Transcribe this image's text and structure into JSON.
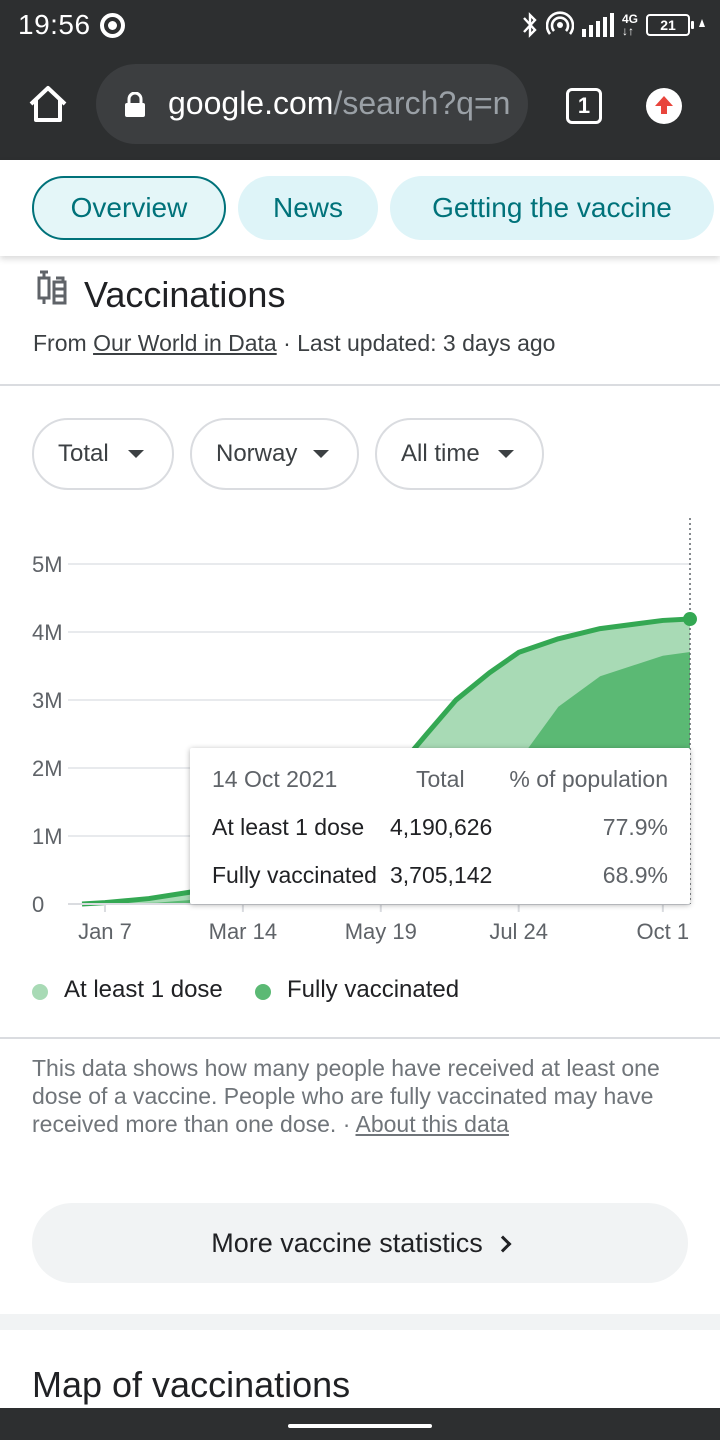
{
  "status_bar": {
    "time": "19:56",
    "battery": "21"
  },
  "toolbar": {
    "url_host": "google.com",
    "url_rest": "/search?q=n",
    "tab_count": "1"
  },
  "chips": [
    {
      "label": "Overview",
      "active": true
    },
    {
      "label": "News",
      "active": false
    },
    {
      "label": "Getting the vaccine",
      "active": false
    }
  ],
  "section": {
    "title": "Vaccinations",
    "source_prefix": "From ",
    "source_link": "Our World in Data",
    "source_suffix": " · Last updated: 3 days ago"
  },
  "filters": [
    {
      "label": "Total"
    },
    {
      "label": "Norway"
    },
    {
      "label": "All time"
    }
  ],
  "chart_data": {
    "type": "area",
    "y_ticks": [
      "5M",
      "4M",
      "3M",
      "2M",
      "1M",
      "0"
    ],
    "x_ticks": [
      "Jan 7",
      "Mar 14",
      "May 19",
      "Jul 24",
      "Oct 1"
    ],
    "ylim": [
      0,
      5000000
    ],
    "series": [
      {
        "name": "At least 1 dose",
        "color": "#a8dab5",
        "points": [
          [
            "2020-12-27",
            0
          ],
          [
            "2021-01-07",
            20000
          ],
          [
            "2021-01-28",
            80000
          ],
          [
            "2021-02-18",
            180000
          ],
          [
            "2021-03-14",
            300000
          ],
          [
            "2021-04-08",
            650000
          ],
          [
            "2021-05-01",
            1200000
          ],
          [
            "2021-05-19",
            1700000
          ],
          [
            "2021-06-10",
            2500000
          ],
          [
            "2021-06-24",
            3000000
          ],
          [
            "2021-07-10",
            3400000
          ],
          [
            "2021-07-24",
            3700000
          ],
          [
            "2021-08-12",
            3900000
          ],
          [
            "2021-09-01",
            4050000
          ],
          [
            "2021-10-01",
            4170000
          ],
          [
            "2021-10-14",
            4190626
          ]
        ]
      },
      {
        "name": "Fully vaccinated",
        "color": "#5bb974",
        "points": [
          [
            "2020-12-27",
            0
          ],
          [
            "2021-01-07",
            0
          ],
          [
            "2021-02-01",
            20000
          ],
          [
            "2021-03-14",
            120000
          ],
          [
            "2021-04-20",
            250000
          ],
          [
            "2021-05-19",
            500000
          ],
          [
            "2021-06-20",
            900000
          ],
          [
            "2021-07-10",
            1500000
          ],
          [
            "2021-07-24",
            2100000
          ],
          [
            "2021-08-12",
            2900000
          ],
          [
            "2021-09-01",
            3350000
          ],
          [
            "2021-10-01",
            3650000
          ],
          [
            "2021-10-14",
            3705142
          ]
        ]
      }
    ]
  },
  "tooltip": {
    "date": "14 Oct 2021",
    "col_total": "Total",
    "col_pct": "% of population",
    "rows": [
      {
        "label": "At least 1 dose",
        "total": "4,190,626",
        "pct": "77.9%"
      },
      {
        "label": "Fully vaccinated",
        "total": "3,705,142",
        "pct": "68.9%"
      }
    ]
  },
  "legend": [
    {
      "label": "At least 1 dose",
      "color": "#a8dab5"
    },
    {
      "label": "Fully vaccinated",
      "color": "#5bb974"
    }
  ],
  "note": {
    "text": "This data shows how many people have received at least one dose of a vaccine. People who are fully vaccinated may have received more than one dose.",
    "separator": " · ",
    "link": "About this data"
  },
  "more_button": {
    "label": "More vaccine statistics"
  },
  "map_section": {
    "title": "Map of vaccinations"
  }
}
